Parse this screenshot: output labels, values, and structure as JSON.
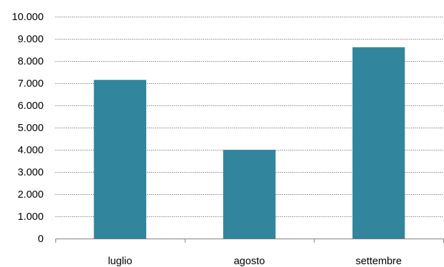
{
  "chart_data": {
    "type": "bar",
    "categories": [
      "luglio",
      "agosto",
      "settembre"
    ],
    "values": [
      7150,
      4000,
      8620
    ],
    "title": "",
    "xlabel": "",
    "ylabel": "",
    "ylim": [
      0,
      10000
    ],
    "yticks": [
      "0",
      "1.000",
      "2.000",
      "3.000",
      "4.000",
      "5.000",
      "6.000",
      "7.000",
      "8.000",
      "9.000",
      "10.000"
    ],
    "grid": true,
    "legend": "none",
    "bar_color": "#31859c"
  }
}
